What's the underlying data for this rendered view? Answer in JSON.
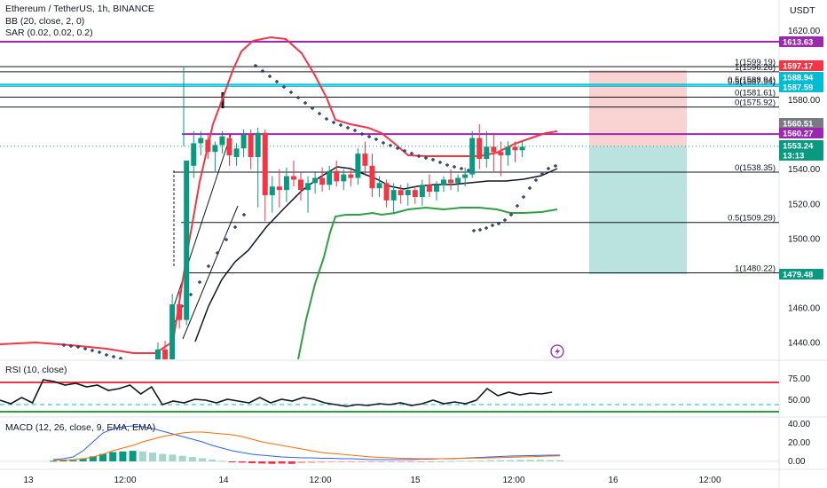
{
  "header": {
    "symbol": "Ethereum / TetherUS, 1h, BINANCE",
    "bb": "BB (20, close, 2, 0)",
    "sar": "SAR (0.02, 0.02, 0.2)",
    "rsi": "RSI (10, close)",
    "macd": "MACD (12, 26, close, 9, EMA, EMA)",
    "currency": "USDT"
  },
  "price_axis_ticks": [
    "1620.00",
    "1600.00",
    "1580.00",
    "1560.00",
    "1540.00",
    "1520.00",
    "1500.00",
    "1480.00",
    "1460.00",
    "1440.00"
  ],
  "rsi_axis_ticks": [
    "75.00",
    "50.00"
  ],
  "macd_axis_ticks": [
    "40.00",
    "20.00",
    "0.00"
  ],
  "time_axis_ticks": [
    "13",
    "12:00",
    "14",
    "12:00",
    "15",
    "12:00",
    "16",
    "12:00"
  ],
  "price_tags": [
    {
      "text": "1613.63",
      "color": "#9c27b0",
      "value": 1613.63
    },
    {
      "text": "1597.17",
      "color": "#f23645",
      "value": 1597.17
    },
    {
      "text": "1588.94",
      "color": "#00bcd4",
      "value": 1588.94
    },
    {
      "text": "1587.59",
      "color": "#00bcd4",
      "value": 1587.59
    },
    {
      "text": "1560.51",
      "color": "#787b86",
      "value": 1560.51
    },
    {
      "text": "1560.27",
      "color": "#9c27b0",
      "value": 1560.27
    },
    {
      "text": "1553.24",
      "color": "#089981",
      "value": 1553.24
    },
    {
      "text": "13:13",
      "color": "#089981",
      "value": 1547.6
    },
    {
      "text": "1479.48",
      "color": "#089981",
      "value": 1479.48
    }
  ],
  "fib_labels": [
    {
      "text": "1(1599.19)",
      "value": 1599.19
    },
    {
      "text": "1(1596.26)",
      "value": 1596.26
    },
    {
      "text": "0.5(1588.94)",
      "value": 1588.94
    },
    {
      "text": "0.5(1587.94)",
      "value": 1587.94
    },
    {
      "text": "0(1581.61)",
      "value": 1581.61
    },
    {
      "text": "0(1575.92)",
      "value": 1575.92
    },
    {
      "text": "0(1538.35)",
      "value": 1538.35
    },
    {
      "text": "0.5(1509.29)",
      "value": 1509.29
    },
    {
      "text": "1(1480.22)",
      "value": 1480.22
    }
  ],
  "colors": {
    "up": "#089981",
    "down": "#f23645",
    "purple": "#9c27b0",
    "cyan": "#00bcd4",
    "sar": "#2a3f6f",
    "bb_upper": "#f23645",
    "bb_lower": "#2ea043",
    "bb_mid": "#131722",
    "macd": "#2962ff",
    "signal": "#ff6d00",
    "tp": "#b2dfdb",
    "sl": "#f8cdcd"
  },
  "chart_data": [
    {
      "type": "candlestick",
      "title": "Ethereum / TetherUS, 1h, BINANCE",
      "ylabel": "USDT",
      "ylim": [
        1428,
        1626
      ],
      "horizontal_levels": [
        1613.63,
        1599.19,
        1596.26,
        1588.94,
        1587.94,
        1581.61,
        1575.92,
        1560.27,
        1538.35,
        1509.29,
        1480.22
      ],
      "candles": [
        [
          1425,
          1440,
          1422,
          1436
        ],
        [
          1436,
          1441,
          1428,
          1430
        ],
        [
          1430,
          1468,
          1425,
          1462
        ],
        [
          1462,
          1470,
          1448,
          1453
        ],
        [
          1453,
          1545,
          1450,
          1545
        ],
        [
          1542,
          1562,
          1535,
          1555
        ],
        [
          1555,
          1562,
          1548,
          1558
        ],
        [
          1557,
          1560,
          1546,
          1550
        ],
        [
          1550,
          1556,
          1538,
          1554
        ],
        [
          1554,
          1562,
          1549,
          1559
        ],
        [
          1558,
          1560,
          1542,
          1548
        ],
        [
          1547,
          1555,
          1542,
          1552
        ],
        [
          1552,
          1563,
          1547,
          1560
        ],
        [
          1560,
          1563,
          1540,
          1547
        ],
        [
          1547,
          1564,
          1518,
          1561
        ],
        [
          1561,
          1563,
          1510,
          1525
        ],
        [
          1525,
          1536,
          1515,
          1530
        ],
        [
          1530,
          1540,
          1518,
          1528
        ],
        [
          1528,
          1541,
          1521,
          1536
        ],
        [
          1536,
          1545,
          1530,
          1534
        ],
        [
          1534,
          1538,
          1522,
          1528
        ],
        [
          1528,
          1536,
          1515,
          1532
        ],
        [
          1532,
          1538,
          1526,
          1535
        ],
        [
          1535,
          1541,
          1527,
          1531
        ],
        [
          1531,
          1542,
          1528,
          1539
        ],
        [
          1539,
          1545,
          1530,
          1533
        ],
        [
          1533,
          1540,
          1528,
          1537
        ],
        [
          1537,
          1541,
          1530,
          1535
        ],
        [
          1535,
          1552,
          1531,
          1549
        ],
        [
          1549,
          1556,
          1537,
          1542
        ],
        [
          1542,
          1549,
          1524,
          1529
        ],
        [
          1529,
          1536,
          1524,
          1532
        ],
        [
          1532,
          1534,
          1518,
          1522
        ],
        [
          1522,
          1532,
          1514,
          1528
        ],
        [
          1528,
          1531,
          1520,
          1525
        ],
        [
          1525,
          1532,
          1519,
          1528
        ],
        [
          1528,
          1530,
          1520,
          1524
        ],
        [
          1524,
          1534,
          1519,
          1531
        ],
        [
          1531,
          1537,
          1524,
          1527
        ],
        [
          1527,
          1533,
          1522,
          1531
        ],
        [
          1531,
          1536,
          1527,
          1534
        ],
        [
          1534,
          1540,
          1528,
          1532
        ],
        [
          1532,
          1537,
          1527,
          1535
        ],
        [
          1535,
          1541,
          1530,
          1537
        ],
        [
          1537,
          1562,
          1535,
          1558
        ],
        [
          1558,
          1566,
          1540,
          1546
        ],
        [
          1546,
          1562,
          1541,
          1553
        ],
        [
          1553,
          1561,
          1538,
          1550
        ],
        [
          1550,
          1556,
          1536,
          1548
        ],
        [
          1548,
          1556,
          1542,
          1553
        ],
        [
          1553,
          1556,
          1544,
          1551
        ],
        [
          1551,
          1556,
          1547,
          1553
        ]
      ],
      "position": {
        "entry": 1553.24,
        "stop": 1597.17,
        "target": 1479.48
      }
    },
    {
      "type": "line",
      "title": "RSI (10, close)",
      "ylim": [
        35,
        95
      ],
      "levels": [
        75,
        50
      ],
      "values": [
        55,
        51,
        58,
        52,
        78,
        76,
        72,
        74,
        70,
        72,
        66,
        68,
        72,
        62,
        70,
        50,
        54,
        52,
        56,
        55,
        52,
        56,
        54,
        52,
        58,
        52,
        56,
        54,
        58,
        56,
        52,
        50,
        48,
        50,
        49,
        51,
        50,
        52,
        49,
        51,
        55,
        51,
        53,
        51,
        55,
        68,
        60,
        64,
        61,
        63,
        62,
        64
      ]
    },
    {
      "type": "bar",
      "title": "MACD (12, 26, close, 9, EMA, EMA)",
      "ylim": [
        -3,
        45
      ],
      "histogram": [
        1,
        1.5,
        2,
        4,
        8,
        12,
        15,
        16,
        17,
        16,
        14,
        12,
        11,
        9,
        7,
        5,
        3,
        1,
        -1,
        -2,
        -3,
        -3.5,
        -4,
        -3.5,
        -4,
        -3,
        -2.5,
        -2,
        -1.5,
        -1.5,
        -1,
        -1,
        -1,
        -1,
        -1,
        -1,
        -1,
        -1,
        -0.5,
        0,
        0.5,
        1,
        1,
        1.5,
        2,
        2,
        2,
        2.5,
        2.5,
        2.5,
        2,
        2
      ],
      "macd": [
        2,
        3,
        5,
        12,
        22,
        32,
        37,
        39,
        40,
        39,
        37,
        34,
        31,
        28,
        25,
        22,
        18,
        15,
        12,
        10,
        8,
        7,
        6,
        5,
        4.5,
        4,
        4,
        3.5,
        3.5,
        3,
        3,
        2.5,
        2,
        2,
        2,
        2,
        2,
        2.5,
        2.5,
        3,
        3,
        3.5,
        4,
        4.5,
        5,
        5.5,
        6,
        6.2,
        6.5,
        6.8,
        7,
        7
      ],
      "signal": [
        1,
        1.5,
        2,
        3,
        5,
        8,
        12,
        15,
        18,
        22,
        25,
        28,
        30,
        32,
        33,
        33,
        32,
        31,
        30,
        28,
        25,
        22,
        20,
        18,
        16,
        14,
        12,
        10,
        9,
        8,
        7,
        6,
        5,
        4.5,
        4,
        3.5,
        3.2,
        3,
        3,
        3,
        3.2,
        3.4,
        3.6,
        3.8,
        4,
        4.3,
        4.6,
        5,
        5.3,
        5.6,
        6,
        6.2
      ]
    }
  ]
}
